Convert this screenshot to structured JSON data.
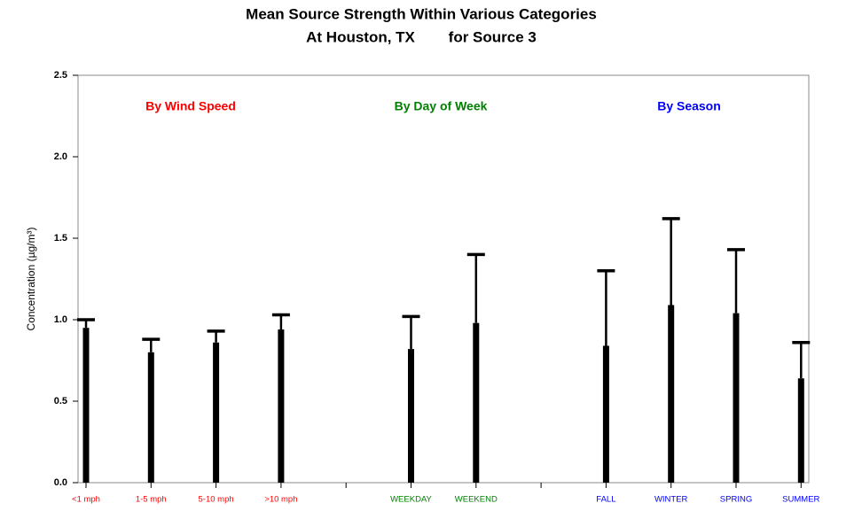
{
  "chart_data": {
    "type": "bar",
    "title": "Mean Source Strength Within Various Categories",
    "subtitle": "At Houston, TX        for Source 3",
    "y_label": "Concentration (µg/m³)",
    "categories": [
      "<1 mph",
      "1-5 mph",
      "5-10 mph",
      ">10 mph",
      null,
      "WEEKDAY",
      "WEEKEND",
      null,
      "FALL",
      "WINTER",
      "SPRING",
      "SUMMER"
    ],
    "category_colors": [
      "#ff0000",
      "#ff0000",
      "#ff0000",
      "#ff0000",
      null,
      "#008000",
      "#008000",
      null,
      "#0000ff",
      "#0000ff",
      "#0000ff",
      "#0000ff"
    ],
    "values": [
      0.95,
      0.8,
      0.86,
      0.94,
      null,
      0.82,
      0.98,
      null,
      0.84,
      1.09,
      1.04,
      0.64
    ],
    "errors": [
      0.05,
      0.08,
      0.07,
      0.09,
      null,
      0.2,
      0.42,
      null,
      0.46,
      0.53,
      0.39,
      0.22
    ],
    "color": "#000000",
    "annotations": [
      {
        "text": "By Wind Speed",
        "color": "#ff0000"
      },
      {
        "text": "By Day of Week",
        "color": "#008000"
      },
      {
        "text": "By Season",
        "color": "#0000ff"
      }
    ],
    "ylim": [
      0,
      2.5
    ],
    "yticks": [
      {
        "value": 0,
        "label": "0.0"
      },
      {
        "value": 0.5,
        "label": "0.5"
      },
      {
        "value": 1,
        "label": "1.0"
      },
      {
        "value": 1.5,
        "label": "1.5"
      },
      {
        "value": 2,
        "label": "2.0"
      },
      {
        "value": 2.5,
        "label": "2.5"
      }
    ],
    "grid": false
  }
}
